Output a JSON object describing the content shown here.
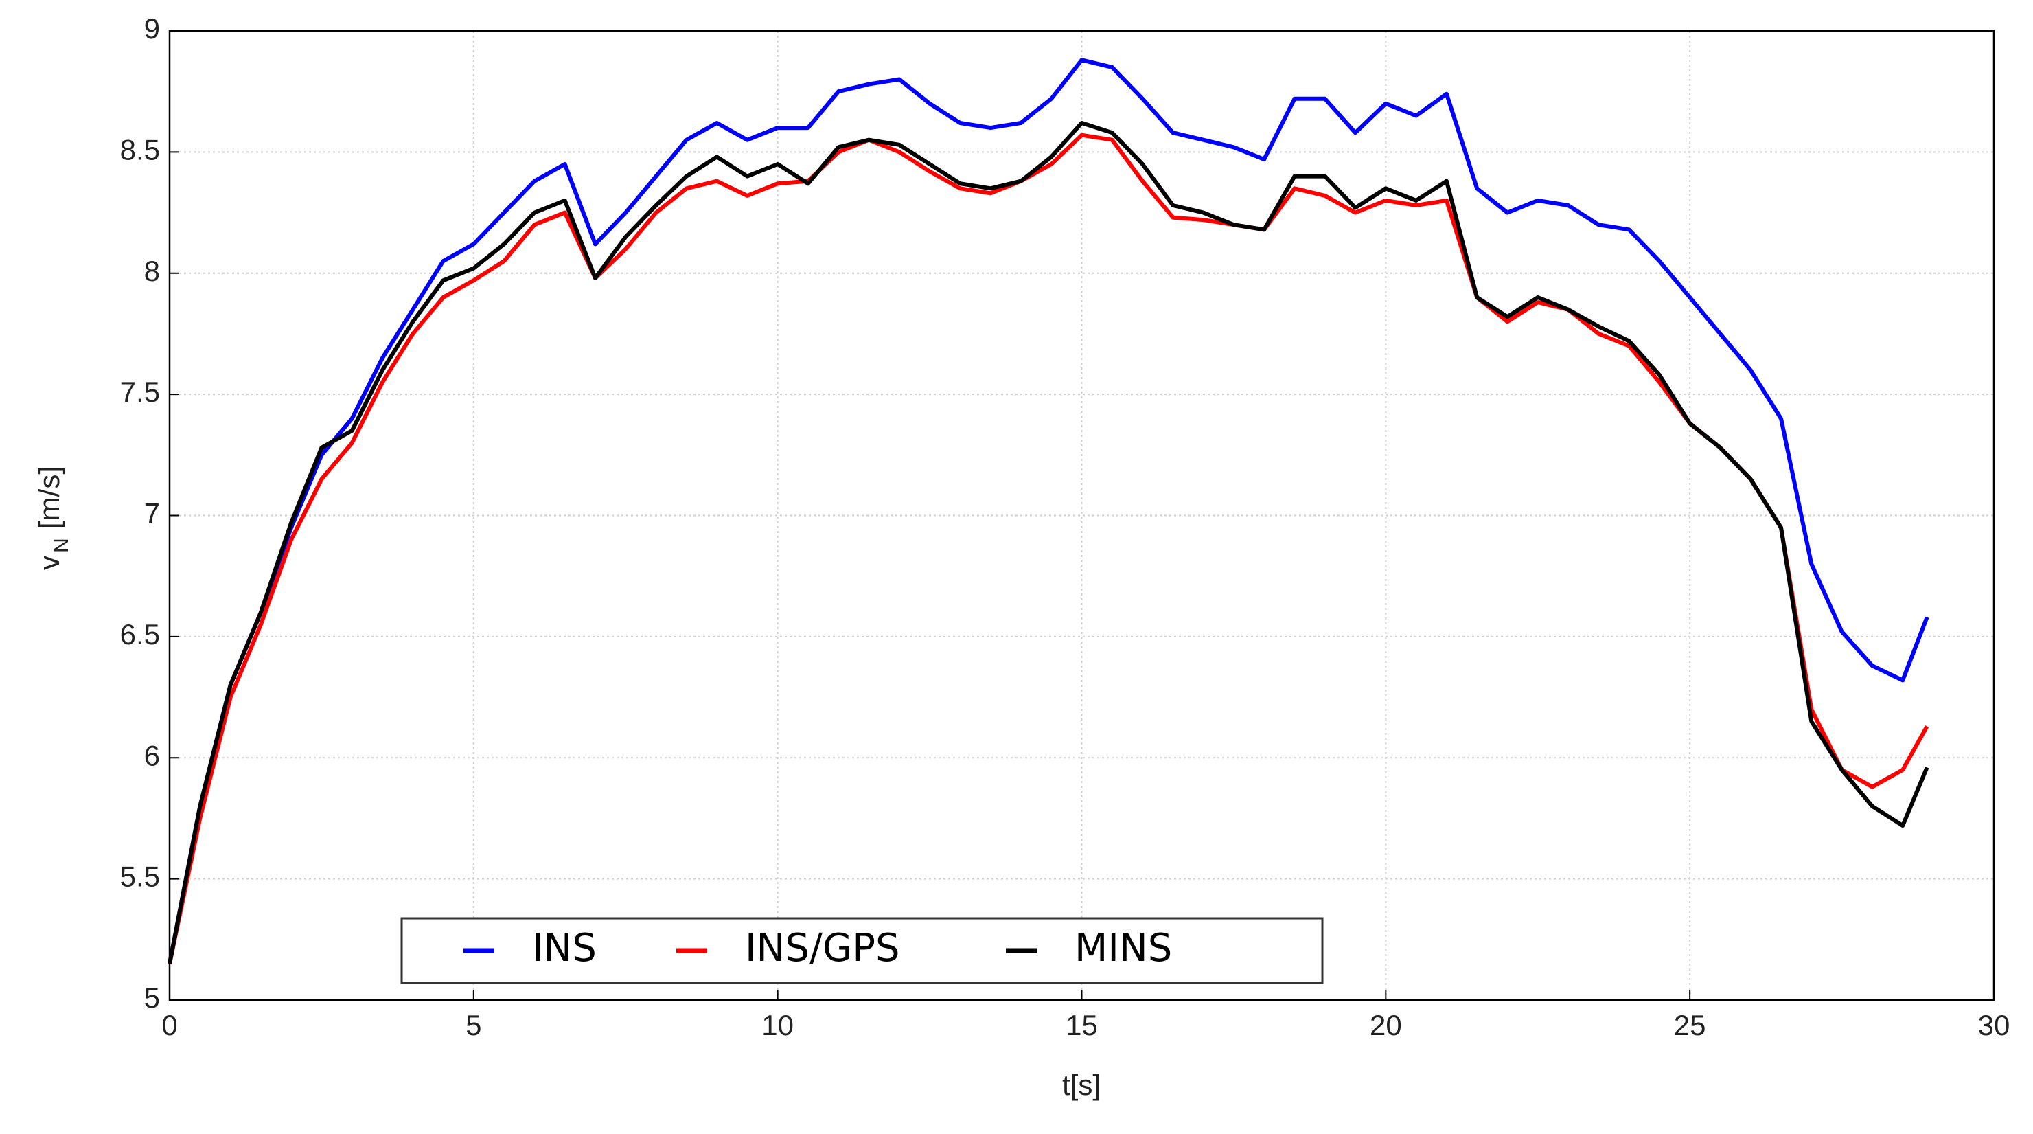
{
  "chart_data": {
    "type": "line",
    "xlabel": "t[s]",
    "ylabel": [
      "v",
      "N",
      "[m/s]"
    ],
    "x": [
      0,
      0.5,
      1,
      1.5,
      2,
      2.5,
      3,
      3.5,
      4,
      4.5,
      5,
      5.5,
      6,
      6.5,
      7,
      7.5,
      8,
      8.5,
      9,
      9.5,
      10,
      10.5,
      11,
      11.5,
      12,
      12.5,
      13,
      13.5,
      14,
      14.5,
      15,
      15.5,
      16,
      16.5,
      17,
      17.5,
      18,
      18.5,
      19,
      19.5,
      20,
      20.5,
      21,
      21.5,
      22,
      22.5,
      23,
      23.5,
      24,
      24.5,
      25,
      25.5,
      26,
      26.5,
      27,
      27.5,
      28,
      28.5,
      28.9
    ],
    "series": [
      {
        "name": "INS",
        "color": "#0000ff",
        "values": [
          5.15,
          5.8,
          6.3,
          6.6,
          6.95,
          7.25,
          7.4,
          7.65,
          7.85,
          8.05,
          8.12,
          8.25,
          8.38,
          8.45,
          8.12,
          8.25,
          8.4,
          8.55,
          8.62,
          8.55,
          8.6,
          8.6,
          8.75,
          8.78,
          8.8,
          8.7,
          8.62,
          8.6,
          8.62,
          8.72,
          8.88,
          8.85,
          8.72,
          8.58,
          8.55,
          8.52,
          8.47,
          8.72,
          8.72,
          8.58,
          8.7,
          8.65,
          8.74,
          8.35,
          8.25,
          8.3,
          8.28,
          8.2,
          8.18,
          8.05,
          7.9,
          7.75,
          7.6,
          7.4,
          6.8,
          6.52,
          6.38,
          6.32,
          6.58
        ]
      },
      {
        "name": "INS/GPS",
        "color": "#ff0000",
        "values": [
          5.15,
          5.75,
          6.25,
          6.55,
          6.9,
          7.15,
          7.3,
          7.55,
          7.75,
          7.9,
          7.97,
          8.05,
          8.2,
          8.25,
          7.98,
          8.1,
          8.25,
          8.35,
          8.38,
          8.32,
          8.37,
          8.38,
          8.5,
          8.55,
          8.5,
          8.42,
          8.35,
          8.33,
          8.38,
          8.45,
          8.57,
          8.55,
          8.38,
          8.23,
          8.22,
          8.2,
          8.18,
          8.35,
          8.32,
          8.25,
          8.3,
          8.28,
          8.3,
          7.9,
          7.8,
          7.88,
          7.85,
          7.75,
          7.7,
          7.55,
          7.38,
          7.28,
          7.15,
          6.95,
          6.2,
          5.95,
          5.88,
          5.95,
          6.13
        ]
      },
      {
        "name": "MINS",
        "color": "#000000",
        "values": [
          5.15,
          5.8,
          6.3,
          6.6,
          6.97,
          7.28,
          7.35,
          7.6,
          7.8,
          7.97,
          8.02,
          8.12,
          8.25,
          8.3,
          7.98,
          8.15,
          8.28,
          8.4,
          8.48,
          8.4,
          8.45,
          8.37,
          8.52,
          8.55,
          8.53,
          8.45,
          8.37,
          8.35,
          8.38,
          8.48,
          8.62,
          8.58,
          8.45,
          8.28,
          8.25,
          8.2,
          8.18,
          8.4,
          8.4,
          8.27,
          8.35,
          8.3,
          8.38,
          7.9,
          7.82,
          7.9,
          7.85,
          7.78,
          7.72,
          7.58,
          7.38,
          7.28,
          7.15,
          6.95,
          6.15,
          5.95,
          5.8,
          5.72,
          5.96
        ]
      }
    ],
    "xlim": [
      0,
      30
    ],
    "xticks": [
      0,
      5,
      10,
      15,
      20,
      25,
      30
    ],
    "ylim": [
      5,
      9
    ],
    "yticks": [
      5,
      5.5,
      6,
      6.5,
      7,
      7.5,
      8,
      8.5,
      9
    ],
    "grid": true,
    "legend": "lower center"
  }
}
